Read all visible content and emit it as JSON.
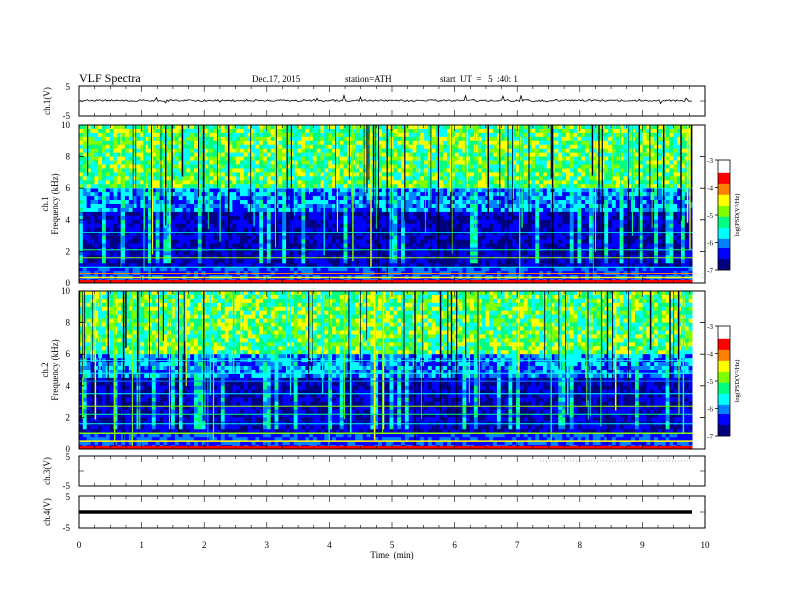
{
  "header": {
    "title": "VLF Spectra",
    "date": "Dec.17, 2015",
    "station": "station=ATH",
    "start": "start  UT  =   5  :40: 1"
  },
  "chart_data": [
    {
      "type": "line",
      "name": "ch1-waveform",
      "ylabel": "ch.1(V)",
      "ylim": [
        -5,
        5
      ],
      "yticks": [
        "5",
        "-5"
      ],
      "xlim": [
        0,
        10
      ],
      "approx_level": 0,
      "approx_range": [
        -0.5,
        0.9
      ]
    },
    {
      "type": "heatmap",
      "name": "ch1-spectrogram",
      "ylabel": "ch.1\nFrequency (kHz)",
      "ylim": [
        0,
        10
      ],
      "yticks": [
        "0",
        "2",
        "4",
        "6",
        "8",
        "10"
      ],
      "xlim": [
        0,
        10
      ],
      "data_end_min": 9.8,
      "colorbar": {
        "label": "log(PSD(V²/Hz)",
        "range": [
          -7,
          -3
        ],
        "ticks": [
          "-3",
          "-4",
          "-5",
          "-6",
          "-7"
        ]
      }
    },
    {
      "type": "heatmap",
      "name": "ch2-spectrogram",
      "ylabel": "ch.2\nFrequency (kHz)",
      "ylim": [
        0,
        10
      ],
      "yticks": [
        "0",
        "2",
        "4",
        "6",
        "8",
        "10"
      ],
      "xlim": [
        0,
        10
      ],
      "data_end_min": 9.8,
      "colorbar": {
        "label": "log(PSD(V²/Hz)",
        "range": [
          -7,
          -3
        ],
        "ticks": [
          "-3",
          "-4",
          "-5",
          "-6",
          "-7"
        ]
      }
    },
    {
      "type": "line",
      "name": "ch3-waveform",
      "ylabel": "ch.3(V)",
      "ylim": [
        -5,
        5
      ],
      "yticks": [
        "5",
        "-5"
      ],
      "xlim": [
        0,
        10
      ]
    },
    {
      "type": "line",
      "name": "ch4-waveform",
      "ylabel": "ch.4(V)",
      "ylim": [
        -5,
        5
      ],
      "yticks": [
        "5",
        "-5"
      ],
      "xlim": [
        0,
        10
      ],
      "approx_level": 0
    }
  ],
  "xaxis": {
    "label": "Time  (min)",
    "ticks": [
      "0",
      "1",
      "2",
      "3",
      "4",
      "5",
      "6",
      "7",
      "8",
      "9",
      "10"
    ]
  },
  "colormap": [
    "#000080",
    "#0000ff",
    "#0080ff",
    "#00ffff",
    "#00ff80",
    "#80ff00",
    "#ffff00",
    "#ff8000",
    "#ff0000",
    "#ffffff"
  ]
}
